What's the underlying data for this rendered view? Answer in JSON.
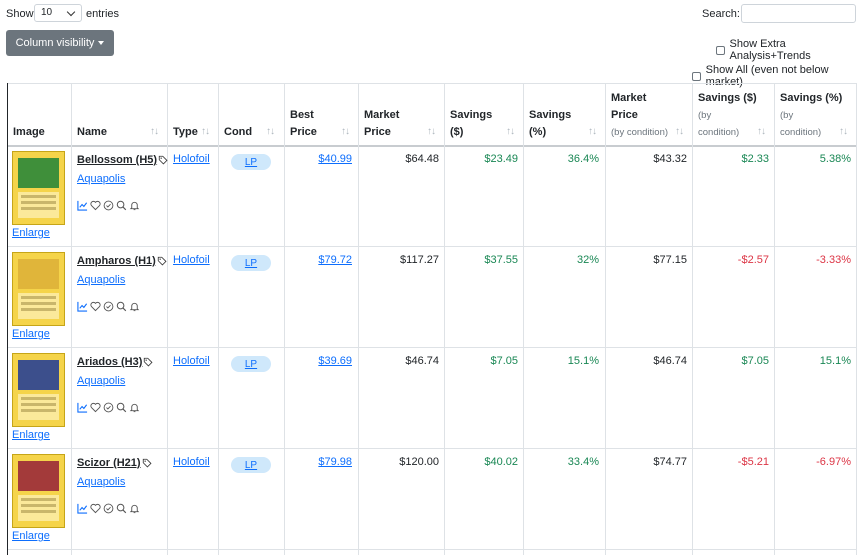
{
  "top": {
    "show_label": "Show",
    "entries_value": "10",
    "entries_label": "entries",
    "search_label": "Search:",
    "search_value": "",
    "colvis_label": "Column visibility",
    "extra_label": "Show Extra Analysis+Trends",
    "show_all_label": "Show All (even not below market)"
  },
  "headers": {
    "image": "Image",
    "name": "Name",
    "type": "Type",
    "cond": "Cond",
    "best1": "Best",
    "best2": "Price",
    "market1": "Market",
    "market2": "Price",
    "savd1": "Savings",
    "savd2": "($)",
    "savp1": "Savings",
    "savp2": "(%)",
    "mbc1": "Market",
    "mbc2": "Price",
    "mbc3": "(by condition)",
    "sbcd1": "Savings ($)",
    "sbcd2": "(by",
    "sbcd3": "condition)",
    "sbcp1": "Savings (%)",
    "sbcp2": "(by",
    "sbcp3": "condition)",
    "sort_glyph": "↑↓"
  },
  "colors": {
    "green": "#198754",
    "red": "#dc3545",
    "link": "#0d6efd",
    "badge_bg": "#cfe8fb"
  },
  "rows": [
    {
      "enlarge": "Enlarge",
      "name": "Bellossom (H5)",
      "set": "Aquapolis",
      "type": "Holofoil",
      "cond": "LP",
      "best": "$40.99",
      "market": "$64.48",
      "sav_d": "$23.49",
      "sav_p": "36.4%",
      "mbc": "$43.32",
      "sbc_d": "$2.33",
      "sbc_p": "5.38%",
      "sbc_negative": false,
      "art": "#3f8f3a"
    },
    {
      "enlarge": "Enlarge",
      "name": "Ampharos (H1)",
      "set": "Aquapolis",
      "type": "Holofoil",
      "cond": "LP",
      "best": "$79.72",
      "market": "$117.27",
      "sav_d": "$37.55",
      "sav_p": "32%",
      "mbc": "$77.15",
      "sbc_d": "-$2.57",
      "sbc_p": "-3.33%",
      "sbc_negative": true,
      "art": "#e0b53a"
    },
    {
      "enlarge": "Enlarge",
      "name": "Ariados (H3)",
      "set": "Aquapolis",
      "type": "Holofoil",
      "cond": "LP",
      "best": "$39.69",
      "market": "$46.74",
      "sav_d": "$7.05",
      "sav_p": "15.1%",
      "mbc": "$46.74",
      "sbc_d": "$7.05",
      "sbc_p": "15.1%",
      "sbc_negative": false,
      "art": "#3c4f8c"
    },
    {
      "enlarge": "Enlarge",
      "name": "Scizor (H21)",
      "set": "Aquapolis",
      "type": "Holofoil",
      "cond": "LP",
      "best": "$79.98",
      "market": "$120.00",
      "sav_d": "$40.02",
      "sav_p": "33.4%",
      "mbc": "$74.77",
      "sbc_d": "-$5.21",
      "sbc_p": "-6.97%",
      "sbc_negative": true,
      "art": "#a33a3a"
    }
  ]
}
